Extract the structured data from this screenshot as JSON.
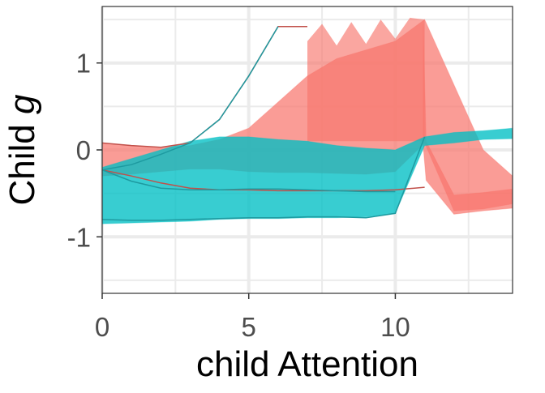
{
  "chart_data": {
    "type": "line",
    "title": "",
    "xlabel": "child Attention",
    "ylabel_prefix": "Child ",
    "ylabel_symbol": "g",
    "xlim": [
      0,
      14
    ],
    "ylim": [
      -1.65,
      1.65
    ],
    "x_ticks": [
      0,
      5,
      10
    ],
    "x_tick_labels": [
      "0",
      "5",
      "10"
    ],
    "x_minor_ticks": [
      2.5,
      7.5,
      12.5
    ],
    "y_ticks": [
      -1,
      0,
      1
    ],
    "y_tick_labels": [
      "-1",
      "0",
      "1"
    ],
    "y_minor_ticks": [
      -1.5,
      -0.5,
      0.5,
      1.5
    ],
    "grid": true,
    "legend": "none",
    "colors": {
      "red": "#F8766D",
      "teal": "#00BFC4",
      "red_dark": "#C1504A",
      "teal_dark": "#1E9AA0",
      "grid": "#EBEBEB",
      "border": "#333333"
    },
    "series": [
      {
        "color": "red",
        "bands": [
          {
            "x": [
              0,
              1,
              2,
              3,
              4,
              5,
              6,
              7,
              8,
              9,
              10,
              11,
              12,
              13,
              14
            ],
            "upper": [
              0.08,
              0.05,
              0.03,
              0.05,
              0.12,
              0.25,
              0.55,
              0.85,
              1.05,
              1.15,
              1.25,
              1.5,
              0.75,
              0.0,
              -0.3
            ],
            "lower": [
              -0.3,
              -0.28,
              -0.25,
              -0.22,
              -0.22,
              -0.25,
              -0.26,
              -0.26,
              -0.27,
              -0.28,
              -0.25,
              0.08,
              -0.7,
              -0.68,
              -0.62
            ]
          },
          {
            "x": [
              10.95,
              11.05,
              12,
              13,
              14
            ],
            "upper": [
              1.45,
              0.1,
              -0.52,
              -0.49,
              -0.45
            ],
            "lower": [
              0.05,
              -0.35,
              -0.74,
              -0.7,
              -0.67
            ]
          }
        ],
        "spikes": [
          {
            "x": [
              7,
              7.5,
              8,
              8.5,
              9,
              9.5,
              10,
              10.5,
              11
            ],
            "upper": [
              1.25,
              1.45,
              1.2,
              1.47,
              1.22,
              1.5,
              1.28,
              1.52,
              1.5
            ]
          }
        ],
        "lines": [
          {
            "x": [
              0,
              1,
              2,
              3,
              4,
              5,
              6,
              7
            ],
            "y": [
              0.08,
              0.05,
              0.03,
              0.08,
              0.35,
              0.85,
              1.42,
              1.42
            ]
          },
          {
            "x": [
              0,
              1,
              2,
              3,
              4,
              5,
              6,
              7,
              8,
              9,
              10,
              11
            ],
            "y": [
              -0.23,
              -0.3,
              -0.38,
              -0.44,
              -0.46,
              -0.46,
              -0.47,
              -0.47,
              -0.47,
              -0.47,
              -0.46,
              -0.43
            ]
          }
        ]
      },
      {
        "color": "teal",
        "bands": [
          {
            "x": [
              0,
              1,
              2,
              3,
              4,
              5,
              6,
              7,
              8,
              9,
              10,
              11,
              12,
              13,
              14
            ],
            "upper": [
              -0.2,
              -0.1,
              0.0,
              0.1,
              0.15,
              0.15,
              0.12,
              0.1,
              0.05,
              0.02,
              0.0,
              0.15,
              0.2,
              0.22,
              0.25
            ],
            "lower": [
              -0.85,
              -0.84,
              -0.83,
              -0.82,
              -0.8,
              -0.79,
              -0.79,
              -0.78,
              -0.78,
              -0.77,
              -0.73,
              0.05,
              0.08,
              0.12,
              0.13
            ]
          }
        ],
        "lines": [
          {
            "x": [
              0,
              1,
              2,
              3,
              4,
              5,
              6
            ],
            "y": [
              -0.23,
              -0.17,
              -0.05,
              0.08,
              0.35,
              0.85,
              1.42
            ]
          },
          {
            "x": [
              0,
              1,
              2,
              3,
              4,
              5,
              6,
              7,
              8,
              9,
              10
            ],
            "y": [
              -0.23,
              -0.36,
              -0.44,
              -0.46,
              -0.46,
              -0.45,
              -0.45,
              -0.46,
              -0.47,
              -0.48,
              -0.48
            ]
          },
          {
            "x": [
              0,
              1,
              2,
              3,
              4,
              5,
              6,
              7,
              8,
              9,
              10,
              11
            ],
            "y": [
              -0.8,
              -0.81,
              -0.81,
              -0.8,
              -0.79,
              -0.78,
              -0.78,
              -0.77,
              -0.77,
              -0.78,
              -0.73,
              0.15
            ]
          }
        ]
      }
    ]
  }
}
